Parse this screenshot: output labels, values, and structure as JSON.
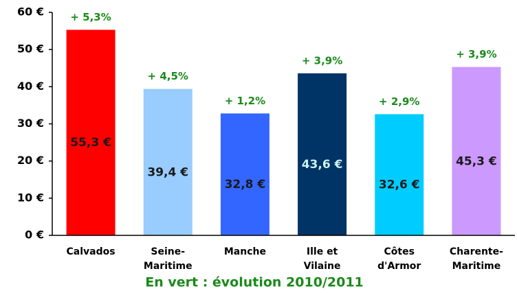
{
  "chart_data": {
    "type": "bar",
    "categories": [
      [
        "Calvados"
      ],
      [
        "Seine-",
        "Maritime"
      ],
      [
        "Manche"
      ],
      [
        "Ille et",
        "Vilaine"
      ],
      [
        "Côtes",
        "d'Armor"
      ],
      [
        "Charente-",
        "Maritime"
      ]
    ],
    "values": [
      55.3,
      39.4,
      32.8,
      43.6,
      32.6,
      45.3
    ],
    "value_labels": [
      "55,3 €",
      "39,4 €",
      "32,8 €",
      "43,6 €",
      "32,6 €",
      "45,3 €"
    ],
    "colors": [
      "#ff0000",
      "#99ccff",
      "#3366ff",
      "#003366",
      "#00ccff",
      "#cc99ff"
    ],
    "value_label_colors": [
      "#1a1a1a",
      "#1a1a1a",
      "#1a1a1a",
      "#ccf2ee",
      "#1a1a1a",
      "#1a1a1a"
    ],
    "annotations": [
      "+ 5,3%",
      "+ 4,5%",
      "+ 1,2%",
      "+ 3,9%",
      "+ 2,9%",
      "+ 3,9%"
    ],
    "annotation_color": "#1a8a1a",
    "ylim": [
      0,
      60
    ],
    "yticks": [
      {
        "value": 0,
        "label": "0 €"
      },
      {
        "value": 10,
        "label": "10 €"
      },
      {
        "value": 20,
        "label": "20 €"
      },
      {
        "value": 30,
        "label": "30 €"
      },
      {
        "value": 40,
        "label": "40 €"
      },
      {
        "value": 50,
        "label": "50 €"
      },
      {
        "value": 60,
        "label": "60 €"
      }
    ],
    "grid": false,
    "note": "En vert : évolution 2010/2011"
  }
}
